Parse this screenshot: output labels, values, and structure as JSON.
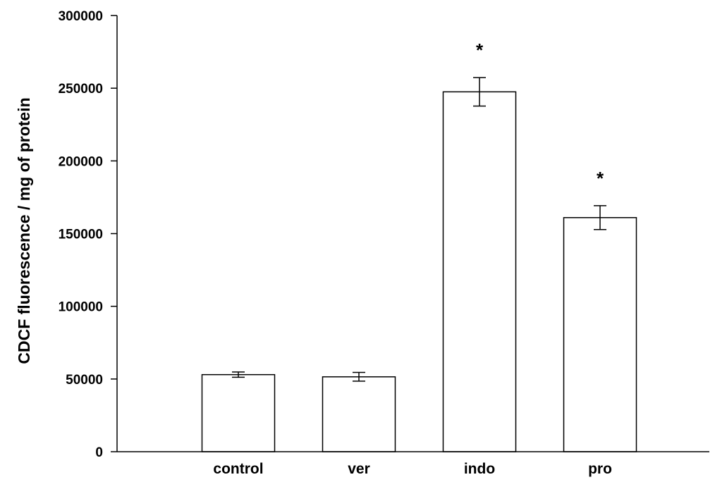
{
  "chart_data": {
    "type": "bar",
    "title": "",
    "xlabel": "",
    "ylabel": "CDCF fluorescence / mg of  protein",
    "ylim": [
      0,
      300000
    ],
    "yticks": [
      0,
      50000,
      100000,
      150000,
      200000,
      250000,
      300000
    ],
    "ytick_labels": [
      "0",
      "50000",
      "100000",
      "150000",
      "200000",
      "250000",
      "300000"
    ],
    "categories": [
      "control",
      "ver",
      "indo",
      "pro"
    ],
    "values": [
      53000,
      51500,
      247500,
      161000
    ],
    "errors": [
      1800,
      3000,
      9800,
      8200
    ],
    "annotations": [
      "",
      "",
      "*",
      "*"
    ],
    "grid": false,
    "bar_fill": "#ffffff",
    "bar_stroke": "#000000"
  }
}
